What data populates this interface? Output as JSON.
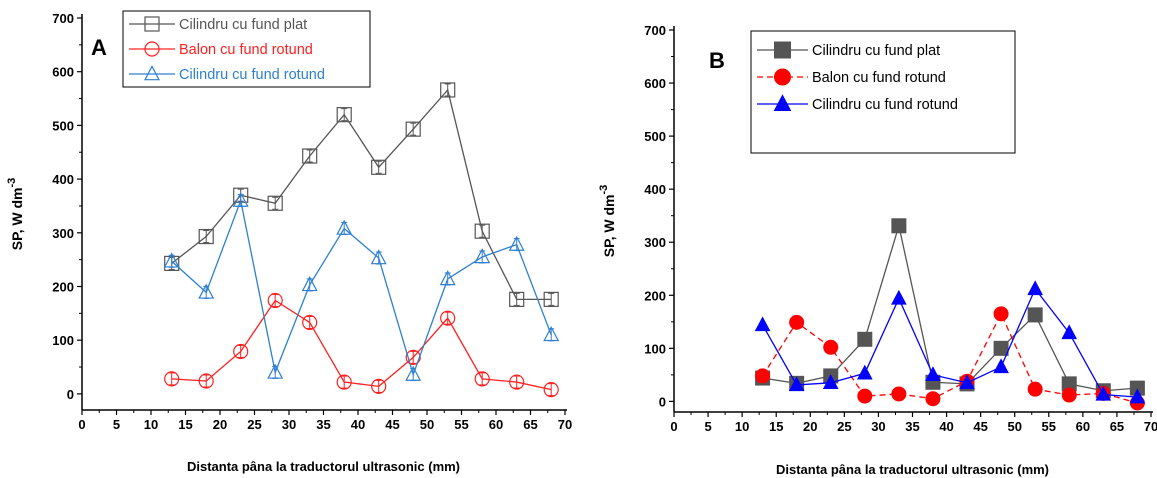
{
  "chart_data": [
    {
      "type": "line",
      "panel_label": "A",
      "xlabel": "Distanta pâna la traductorul ultrasonic (mm)",
      "ylabel_main": "SP, W dm",
      "ylabel_sup": "-3",
      "xlim": [
        0,
        70
      ],
      "ylim": [
        -30,
        700
      ],
      "x_ticks": [
        0,
        5,
        10,
        15,
        20,
        25,
        30,
        35,
        40,
        45,
        50,
        55,
        60,
        65,
        70
      ],
      "y_ticks": [
        0,
        100,
        200,
        300,
        400,
        500,
        600,
        700
      ],
      "legend_position": "top-left",
      "markers_filled": false,
      "x": [
        13,
        18,
        23,
        28,
        33,
        38,
        43,
        48,
        53,
        58,
        63,
        68
      ],
      "series": [
        {
          "name": "Cilindru cu fund plat",
          "color": "#555555",
          "marker": "square",
          "dash": "",
          "values": [
            243,
            293,
            370,
            355,
            443,
            520,
            422,
            493,
            566,
            303,
            176,
            176
          ]
        },
        {
          "name": "Balon cu fund rotund",
          "color": "#ff2020",
          "marker": "circle",
          "dash": "",
          "values": [
            28,
            24,
            79,
            174,
            133,
            22,
            14,
            68,
            141,
            28,
            22,
            8
          ]
        },
        {
          "name": "Cilindru cu fund rotund",
          "color": "#2f7fd0",
          "marker": "triangle",
          "dash": "",
          "values": [
            247,
            189,
            360,
            40,
            203,
            308,
            253,
            36,
            214,
            255,
            278,
            110
          ]
        }
      ]
    },
    {
      "type": "line",
      "panel_label": "B",
      "xlabel": "Distanta pâna la traductorul ultrasonic (mm)",
      "ylabel_main": "SP, W dm",
      "ylabel_sup": "-3",
      "xlim": [
        0,
        70
      ],
      "ylim": [
        -20,
        700
      ],
      "x_ticks": [
        0,
        5,
        10,
        15,
        20,
        25,
        30,
        35,
        40,
        45,
        50,
        55,
        60,
        65,
        70
      ],
      "y_ticks": [
        0,
        100,
        200,
        300,
        400,
        500,
        600,
        700
      ],
      "legend_position": "top-left",
      "markers_filled": true,
      "x": [
        13,
        18,
        23,
        28,
        33,
        38,
        43,
        48,
        53,
        58,
        63,
        68
      ],
      "series": [
        {
          "name": "Cilindru cu fund plat",
          "color": "#555555",
          "marker": "square",
          "dash": "",
          "values": [
            44,
            34,
            48,
            117,
            331,
            36,
            33,
            100,
            163,
            33,
            20,
            25
          ]
        },
        {
          "name": "Balon cu fund rotund",
          "color": "#ff0000",
          "marker": "circle",
          "dash": "6,4",
          "values": [
            48,
            149,
            102,
            10,
            14,
            5,
            38,
            165,
            23,
            12,
            15,
            -3
          ]
        },
        {
          "name": "Cilindru cu fund rotund",
          "color": "#0000ff",
          "marker": "triangle",
          "dash": "",
          "values": [
            144,
            31,
            35,
            53,
            194,
            50,
            35,
            65,
            212,
            129,
            13,
            8
          ]
        }
      ]
    }
  ]
}
